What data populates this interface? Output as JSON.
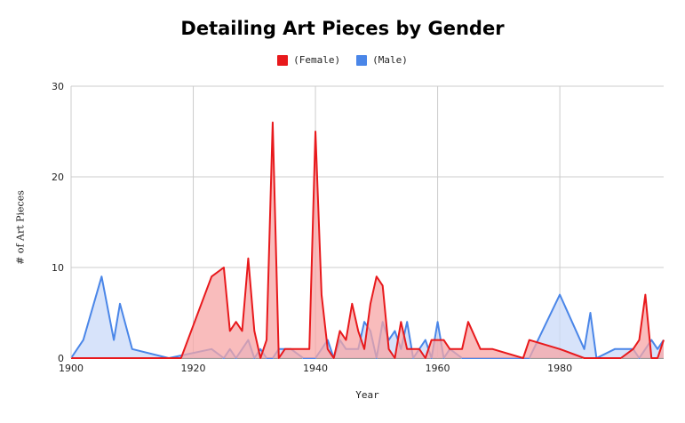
{
  "chart_data": {
    "type": "area",
    "title": "Detailing Art Pieces by Gender",
    "xlabel": "Year",
    "ylabel": "# of Art Pieces",
    "xlim": [
      1900,
      1997
    ],
    "ylim": [
      0,
      30
    ],
    "x_ticks": [
      "1900",
      "1920",
      "1940",
      "1960",
      "1980"
    ],
    "y_ticks": [
      "0",
      "10",
      "20",
      "30"
    ],
    "legend_position": "top-center",
    "grid": true,
    "series": [
      {
        "name": "(Female)",
        "color": "#e8191c",
        "fill": "#f7a6a6",
        "points": [
          [
            1900,
            0
          ],
          [
            1918,
            0
          ],
          [
            1923,
            9
          ],
          [
            1925,
            10
          ],
          [
            1926,
            3
          ],
          [
            1927,
            4
          ],
          [
            1928,
            3
          ],
          [
            1929,
            11
          ],
          [
            1930,
            3
          ],
          [
            1931,
            0
          ],
          [
            1932,
            2
          ],
          [
            1933,
            26
          ],
          [
            1934,
            0
          ],
          [
            1935,
            1
          ],
          [
            1937,
            1
          ],
          [
            1939,
            1
          ],
          [
            1940,
            25
          ],
          [
            1941,
            7
          ],
          [
            1942,
            1
          ],
          [
            1943,
            0
          ],
          [
            1944,
            3
          ],
          [
            1945,
            2
          ],
          [
            1946,
            6
          ],
          [
            1947,
            3
          ],
          [
            1948,
            1
          ],
          [
            1949,
            6
          ],
          [
            1950,
            9
          ],
          [
            1951,
            8
          ],
          [
            1952,
            1
          ],
          [
            1953,
            0
          ],
          [
            1954,
            4
          ],
          [
            1955,
            1
          ],
          [
            1956,
            1
          ],
          [
            1957,
            1
          ],
          [
            1958,
            0
          ],
          [
            1959,
            2
          ],
          [
            1960,
            2
          ],
          [
            1961,
            2
          ],
          [
            1962,
            1
          ],
          [
            1964,
            1
          ],
          [
            1965,
            4
          ],
          [
            1967,
            1
          ],
          [
            1969,
            1
          ],
          [
            1974,
            0
          ],
          [
            1975,
            2
          ],
          [
            1980,
            1
          ],
          [
            1984,
            0
          ],
          [
            1990,
            0
          ],
          [
            1992,
            1
          ],
          [
            1993,
            2
          ],
          [
            1994,
            7
          ],
          [
            1995,
            0
          ],
          [
            1996,
            0
          ],
          [
            1997,
            2
          ]
        ]
      },
      {
        "name": "(Male)",
        "color": "#4a86e8",
        "fill": "#c9daf8",
        "points": [
          [
            1900,
            0
          ],
          [
            1902,
            2
          ],
          [
            1905,
            9
          ],
          [
            1907,
            2
          ],
          [
            1908,
            6
          ],
          [
            1910,
            1
          ],
          [
            1916,
            0
          ],
          [
            1923,
            1
          ],
          [
            1925,
            0
          ],
          [
            1926,
            1
          ],
          [
            1927,
            0
          ],
          [
            1929,
            2
          ],
          [
            1930,
            0
          ],
          [
            1931,
            1
          ],
          [
            1932,
            0
          ],
          [
            1933,
            0
          ],
          [
            1934,
            1
          ],
          [
            1936,
            1
          ],
          [
            1938,
            0
          ],
          [
            1940,
            0
          ],
          [
            1942,
            2
          ],
          [
            1943,
            0
          ],
          [
            1944,
            2
          ],
          [
            1945,
            1
          ],
          [
            1947,
            1
          ],
          [
            1948,
            4
          ],
          [
            1949,
            3
          ],
          [
            1950,
            0
          ],
          [
            1951,
            4
          ],
          [
            1952,
            2
          ],
          [
            1953,
            3
          ],
          [
            1954,
            1
          ],
          [
            1955,
            4
          ],
          [
            1956,
            0
          ],
          [
            1958,
            2
          ],
          [
            1959,
            0
          ],
          [
            1960,
            4
          ],
          [
            1961,
            0
          ],
          [
            1962,
            1
          ],
          [
            1964,
            0
          ],
          [
            1975,
            0
          ],
          [
            1980,
            7
          ],
          [
            1984,
            1
          ],
          [
            1985,
            5
          ],
          [
            1986,
            0
          ],
          [
            1989,
            1
          ],
          [
            1992,
            1
          ],
          [
            1993,
            0
          ],
          [
            1995,
            2
          ],
          [
            1996,
            1
          ],
          [
            1997,
            2
          ]
        ]
      }
    ]
  }
}
